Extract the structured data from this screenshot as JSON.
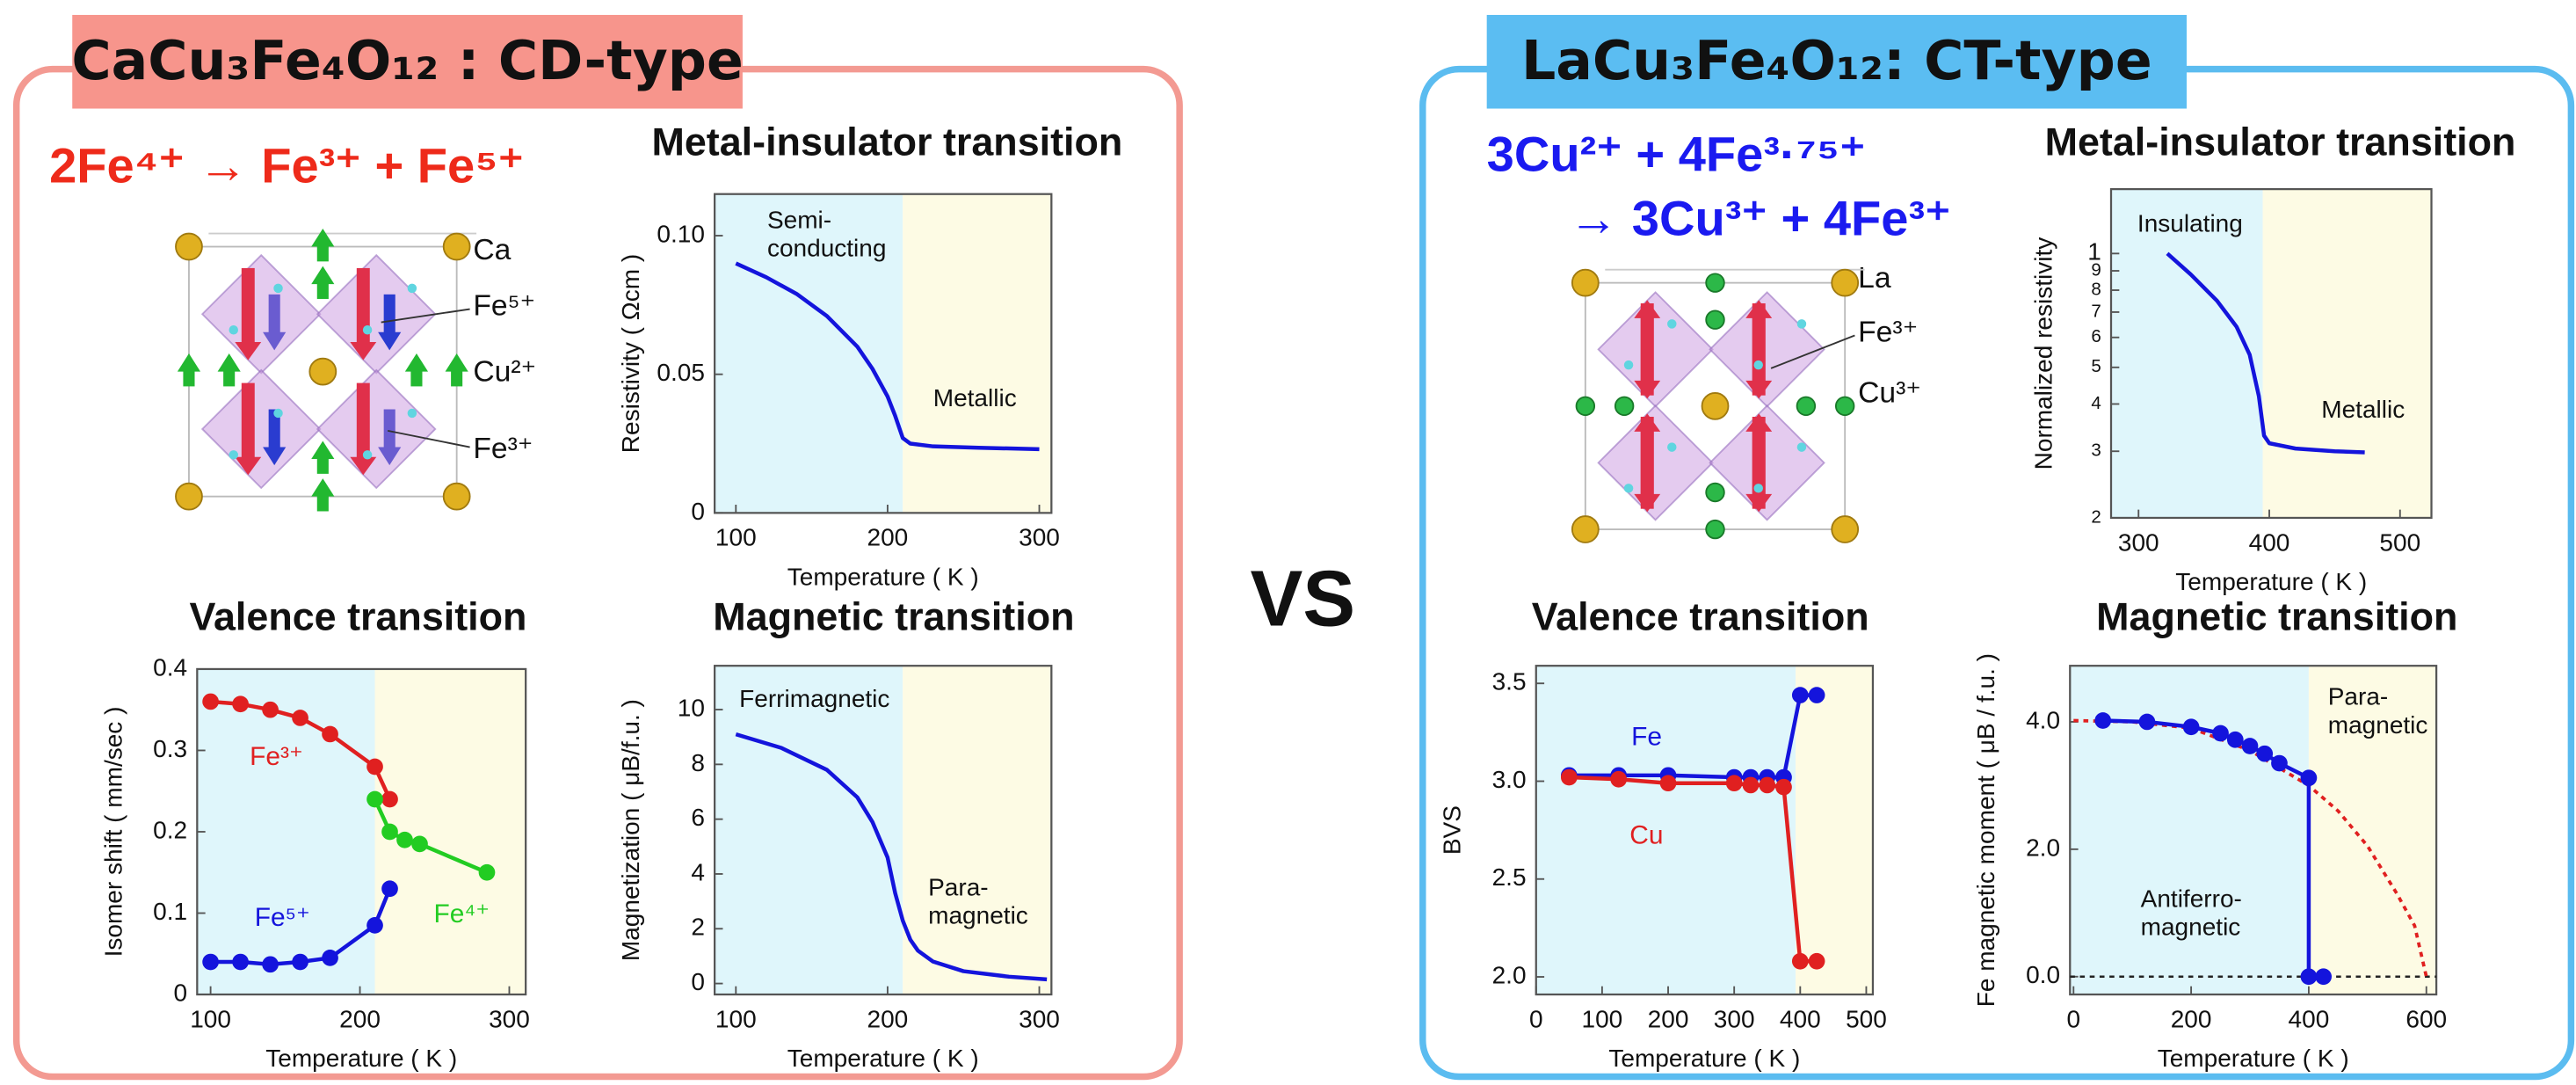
{
  "panels": [
    {
      "header": "CaCu₃Fe₄O₁₂ : CD-type",
      "reaction": [
        "2Fe⁴⁺ → Fe³⁺ + Fe⁵⁺"
      ],
      "structure_labels": [
        "Ca",
        "Fe⁵⁺",
        "Cu²⁺",
        "Fe³⁺"
      ]
    },
    {
      "header": "LaCu₃Fe₄O₁₂: CT-type",
      "reaction": [
        "3Cu²⁺ + 4Fe³·⁷⁵⁺",
        "→ 3Cu³⁺ + 4Fe³⁺"
      ],
      "structure_labels": [
        "La",
        "Fe³⁺",
        "Cu³⁺"
      ]
    }
  ],
  "vs": "VS",
  "chart_data": [
    {
      "type": "line",
      "title": "Metal-insulator transition",
      "x_label": "Temperature ( K )",
      "y_label": "Resistivity ( Ωcm )",
      "xlim": [
        86,
        308
      ],
      "ylim": [
        0,
        0.115
      ],
      "xticks": [
        100,
        200,
        300
      ],
      "yticks": [
        0,
        0.05,
        {
          "value": 0.1,
          "label": "0.10"
        }
      ],
      "regions": [
        {
          "from": 86,
          "to": 210,
          "color": "#dff6fb",
          "label": "Semi-\nconducting"
        },
        {
          "from": 210,
          "to": 308,
          "color": "#fdfbe4",
          "label": "Metallic"
        }
      ],
      "series": [
        {
          "color": "#1414dc",
          "x": [
            100,
            120,
            140,
            160,
            180,
            190,
            200,
            205,
            210,
            215,
            230,
            260,
            300
          ],
          "values": [
            0.09,
            0.085,
            0.079,
            0.071,
            0.06,
            0.052,
            0.042,
            0.035,
            0.027,
            0.025,
            0.024,
            0.0235,
            0.023
          ]
        }
      ]
    },
    {
      "type": "line",
      "title": "Valence transition",
      "x_label": "Temperature ( K )",
      "y_label": "Isomer shift ( mm/sec )",
      "xlim": [
        91,
        311
      ],
      "ylim": [
        0,
        0.4
      ],
      "xticks": [
        100,
        200,
        300
      ],
      "yticks": [
        0,
        0.1,
        0.2,
        0.3,
        0.4
      ],
      "regions": [
        {
          "from": 91,
          "to": 210,
          "color": "#dff6fb"
        },
        {
          "from": 210,
          "to": 311,
          "color": "#fdfbe4"
        }
      ],
      "series": [
        {
          "name": "Fe³⁺",
          "color": "#e02020",
          "markers": true,
          "x": [
            100,
            120,
            140,
            160,
            180,
            210,
            220
          ],
          "values": [
            0.36,
            0.357,
            0.35,
            0.34,
            0.32,
            0.28,
            0.24
          ]
        },
        {
          "name": "Fe⁴⁺",
          "color": "#22cc22",
          "markers": true,
          "x": [
            210,
            220,
            230,
            240,
            285
          ],
          "values": [
            0.24,
            0.2,
            0.19,
            0.185,
            0.15
          ]
        },
        {
          "name": "Fe⁵⁺",
          "color": "#1414dc",
          "markers": true,
          "x": [
            100,
            120,
            140,
            160,
            180,
            210,
            220
          ],
          "values": [
            0.04,
            0.04,
            0.037,
            0.04,
            0.045,
            0.085,
            0.13
          ]
        }
      ]
    },
    {
      "type": "line",
      "title": "Magnetic transition",
      "x_label": "Temperature ( K )",
      "y_label": "Magnetization ( μB/f.u. )",
      "xlim": [
        86,
        308
      ],
      "ylim": [
        -0.4,
        11.6
      ],
      "xticks": [
        100,
        200,
        300
      ],
      "yticks": [
        0,
        2,
        4,
        6,
        8,
        10
      ],
      "regions": [
        {
          "from": 86,
          "to": 210,
          "color": "#dff6fb",
          "label": "Ferrimagnetic"
        },
        {
          "from": 210,
          "to": 308,
          "color": "#fdfbe4",
          "label": "Para-\nmagnetic"
        }
      ],
      "series": [
        {
          "color": "#1414dc",
          "x": [
            100,
            130,
            160,
            180,
            190,
            200,
            205,
            210,
            215,
            220,
            230,
            250,
            280,
            305
          ],
          "values": [
            9.1,
            8.6,
            7.8,
            6.8,
            5.9,
            4.6,
            3.3,
            2.3,
            1.6,
            1.2,
            0.8,
            0.45,
            0.25,
            0.15
          ]
        }
      ]
    },
    {
      "type": "line",
      "title": "Metal-insulator transition",
      "x_label": "Temperature ( K )",
      "y_label": "Normalized resistivity",
      "log_y": true,
      "xlim": [
        279,
        524
      ],
      "ylim": [
        0.2,
        1.48
      ],
      "xticks": [
        300,
        400,
        500
      ],
      "yticks": [
        {
          "value": 0.2,
          "label": "2"
        },
        {
          "value": 0.3,
          "label": "3"
        },
        {
          "value": 0.4,
          "label": "4"
        },
        {
          "value": 0.5,
          "label": "5"
        },
        {
          "value": 0.6,
          "label": "6"
        },
        {
          "value": 0.7,
          "label": "7"
        },
        {
          "value": 0.8,
          "label": "8"
        },
        {
          "value": 0.9,
          "label": "9"
        },
        1
      ],
      "regions": [
        {
          "from": 279,
          "to": 395,
          "color": "#dff6fb",
          "label": "Insulating"
        },
        {
          "from": 395,
          "to": 524,
          "color": "#fdfbe4",
          "label": "Metallic"
        }
      ],
      "series": [
        {
          "color": "#1414dc",
          "x": [
            322,
            340,
            360,
            375,
            385,
            392,
            396,
            400,
            420,
            450,
            473
          ],
          "values": [
            1,
            0.88,
            0.75,
            0.64,
            0.54,
            0.42,
            0.33,
            0.315,
            0.305,
            0.3,
            0.298
          ]
        }
      ]
    },
    {
      "type": "line",
      "title": "Valence transition",
      "x_label": "Temperature ( K )",
      "y_label": "BVS",
      "xlim": [
        0,
        510
      ],
      "ylim": [
        1.91,
        3.59
      ],
      "xticks": [
        0,
        100,
        200,
        300,
        400,
        500
      ],
      "yticks": [
        {
          "value": 2,
          "label": "2.0"
        },
        2.5,
        {
          "value": 3,
          "label": "3.0"
        },
        3.5
      ],
      "regions": [
        {
          "from": 0,
          "to": 393,
          "color": "#dff6fb"
        },
        {
          "from": 393,
          "to": 510,
          "color": "#fdfbe4"
        }
      ],
      "series": [
        {
          "name": "Fe",
          "color": "#1414dc",
          "markers": true,
          "x": [
            50,
            125,
            200,
            300,
            325,
            350,
            375,
            400,
            425
          ],
          "values": [
            3.03,
            3.03,
            3.03,
            3.02,
            3.02,
            3.02,
            3.02,
            3.44,
            3.44
          ]
        },
        {
          "name": "Cu",
          "color": "#e02020",
          "markers": true,
          "x": [
            50,
            125,
            200,
            300,
            325,
            350,
            375,
            400,
            425
          ],
          "values": [
            3.02,
            3.01,
            2.99,
            2.99,
            2.98,
            2.98,
            2.97,
            2.08,
            2.08
          ]
        }
      ]
    },
    {
      "type": "line",
      "title": "Magnetic transition",
      "x_label": "Temperature ( K )",
      "y_label": "Fe magnetic moment ( μB / f.u. )",
      "xlim": [
        -6,
        617
      ],
      "ylim": [
        -0.28,
        4.88
      ],
      "xticks": [
        0,
        200,
        400,
        600
      ],
      "yticks": [
        {
          "value": 0,
          "label": "0.0"
        },
        {
          "value": 2,
          "label": "2.0"
        },
        {
          "value": 4,
          "label": "4.0"
        }
      ],
      "reference_line": 0,
      "regions": [
        {
          "from": -6,
          "to": 400,
          "color": "#dff6fb",
          "label": "Antiferro-\nmagnetic"
        },
        {
          "from": 400,
          "to": 617,
          "color": "#fdfbe4",
          "label": "Para-\nmagnetic"
        }
      ],
      "series": [
        {
          "color": "#e02020",
          "dashed": true,
          "x": [
            0,
            100,
            200,
            300,
            400,
            450,
            500,
            550,
            580,
            600
          ],
          "values": [
            4.02,
            4,
            3.9,
            3.55,
            3,
            2.6,
            2.05,
            1.3,
            0.8,
            0
          ]
        },
        {
          "color": "#1414dc",
          "markers": true,
          "x": [
            50,
            125,
            200,
            250,
            275,
            300,
            325,
            350,
            400,
            400,
            425
          ],
          "values": [
            4.02,
            4,
            3.92,
            3.82,
            3.72,
            3.62,
            3.5,
            3.35,
            3.12,
            0,
            0
          ]
        }
      ]
    }
  ]
}
